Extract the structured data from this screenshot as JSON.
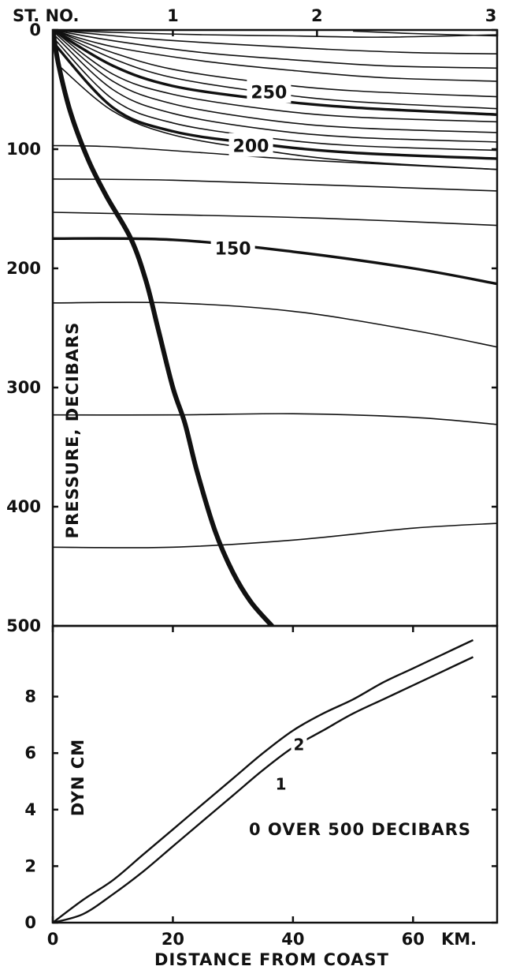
{
  "chart_data": [
    {
      "type": "line",
      "panel": "vertical section",
      "x_label": "",
      "y_label": "PRESSURE, DECIBARS",
      "xlim": [
        0,
        74
      ],
      "ylim": [
        500,
        0
      ],
      "y_ticks": [
        "0",
        "100",
        "200",
        "300",
        "400",
        "500"
      ],
      "station_header": "ST. NO.",
      "stations": [
        {
          "label": "1",
          "x": 20
        },
        {
          "label": "2",
          "x": 44
        },
        {
          "label": "3",
          "x": 74
        }
      ],
      "contour_labels": [
        "250",
        "200",
        "150"
      ],
      "bottom_profile": [
        [
          0,
          0
        ],
        [
          1,
          30
        ],
        [
          3,
          70
        ],
        [
          6,
          110
        ],
        [
          9,
          140
        ],
        [
          13,
          175
        ],
        [
          15.5,
          210
        ],
        [
          17.5,
          250
        ],
        [
          20,
          300
        ],
        [
          22,
          330
        ],
        [
          24,
          370
        ],
        [
          27,
          420
        ],
        [
          30,
          455
        ],
        [
          33,
          480
        ],
        [
          36.5,
          500
        ]
      ],
      "isopleths": [
        {
          "major": false,
          "points": [
            [
              0,
              0
            ],
            [
              10,
              2
            ],
            [
              25,
              4
            ],
            [
              40,
              5
            ],
            [
              55,
              6
            ],
            [
              74,
              4
            ]
          ]
        },
        {
          "major": false,
          "points": [
            [
              50,
              1
            ],
            [
              60,
              3
            ],
            [
              74,
              5
            ]
          ]
        },
        {
          "major": false,
          "points": [
            [
              0,
              0
            ],
            [
              15,
              7
            ],
            [
              30,
              12
            ],
            [
              45,
              16
            ],
            [
              60,
              19
            ],
            [
              74,
              20
            ]
          ]
        },
        {
          "major": false,
          "points": [
            [
              0,
              0
            ],
            [
              10,
              9
            ],
            [
              25,
              19
            ],
            [
              40,
              25
            ],
            [
              55,
              30
            ],
            [
              74,
              32
            ]
          ]
        },
        {
          "major": false,
          "points": [
            [
              0,
              0
            ],
            [
              10,
              14
            ],
            [
              25,
              26
            ],
            [
              40,
              34
            ],
            [
              55,
              40
            ],
            [
              74,
              43
            ]
          ]
        },
        {
          "major": false,
          "points": [
            [
              0,
              0
            ],
            [
              10,
              19
            ],
            [
              20,
              33
            ],
            [
              35,
              44
            ],
            [
              50,
              51
            ],
            [
              74,
              56
            ]
          ]
        },
        {
          "major": false,
          "points": [
            [
              0,
              0
            ],
            [
              10,
              24
            ],
            [
              20,
              40
            ],
            [
              35,
              52
            ],
            [
              50,
              60
            ],
            [
              74,
              66
            ]
          ]
        },
        {
          "major": true,
          "label": "250",
          "points": [
            [
              0,
              0
            ],
            [
              10,
              30
            ],
            [
              20,
              47
            ],
            [
              35,
              58
            ],
            [
              50,
              65
            ],
            [
              74,
              71
            ]
          ]
        },
        {
          "major": false,
          "points": [
            [
              0,
              0
            ],
            [
              10,
              37
            ],
            [
              20,
              54
            ],
            [
              35,
              66
            ],
            [
              50,
              73
            ],
            [
              74,
              77
            ]
          ]
        },
        {
          "major": false,
          "points": [
            [
              0,
              1
            ],
            [
              10,
              43
            ],
            [
              20,
              62
            ],
            [
              35,
              75
            ],
            [
              50,
              82
            ],
            [
              74,
              86
            ]
          ]
        },
        {
          "major": false,
          "points": [
            [
              0,
              3
            ],
            [
              10,
              50
            ],
            [
              20,
              70
            ],
            [
              35,
              83
            ],
            [
              50,
              90
            ],
            [
              74,
              94
            ]
          ]
        },
        {
          "major": false,
          "points": [
            [
              0,
              6
            ],
            [
              10,
              58
            ],
            [
              20,
              78
            ],
            [
              35,
              90
            ],
            [
              50,
              97
            ],
            [
              74,
              101
            ]
          ]
        },
        {
          "major": true,
          "label": "200",
          "points": [
            [
              0,
              10
            ],
            [
              10,
              65
            ],
            [
              20,
              85
            ],
            [
              35,
              96
            ],
            [
              50,
              103
            ],
            [
              74,
              108
            ]
          ]
        },
        {
          "major": false,
          "points": [
            [
              1,
              30
            ],
            [
              10,
              68
            ],
            [
              20,
              88
            ],
            [
              35,
              101
            ],
            [
              50,
              110
            ],
            [
              74,
              117
            ]
          ]
        },
        {
          "major": false,
          "points": [
            [
              0,
              97
            ],
            [
              10,
              98
            ],
            [
              25,
              103
            ],
            [
              45,
              110
            ],
            [
              74,
              117
            ]
          ]
        },
        {
          "major": false,
          "points": [
            [
              0,
              125
            ],
            [
              20,
              126
            ],
            [
              45,
              130
            ],
            [
              74,
              135
            ]
          ]
        },
        {
          "major": false,
          "points": [
            [
              0,
              153
            ],
            [
              20,
              155
            ],
            [
              45,
              158
            ],
            [
              74,
              164
            ]
          ]
        },
        {
          "major": true,
          "label": "150",
          "points": [
            [
              0,
              175
            ],
            [
              20,
              176
            ],
            [
              40,
              186
            ],
            [
              60,
              200
            ],
            [
              74,
              213
            ]
          ]
        },
        {
          "major": false,
          "points": [
            [
              0,
              229
            ],
            [
              20,
              229
            ],
            [
              40,
              236
            ],
            [
              60,
              252
            ],
            [
              74,
              266
            ]
          ]
        },
        {
          "major": false,
          "points": [
            [
              0,
              323
            ],
            [
              20,
              323
            ],
            [
              40,
              322
            ],
            [
              60,
              325
            ],
            [
              74,
              331
            ]
          ]
        },
        {
          "major": false,
          "points": [
            [
              0,
              434
            ],
            [
              20,
              434
            ],
            [
              40,
              428
            ],
            [
              60,
              418
            ],
            [
              74,
              414
            ]
          ]
        }
      ]
    },
    {
      "type": "line",
      "panel": "dynamic height difference",
      "x_label": "DISTANCE FROM COAST",
      "x_unit_label": "KM.",
      "y_label": "DYN CM",
      "annotation": "0 OVER 500 DECIBARS",
      "xlim": [
        0,
        74
      ],
      "ylim": [
        0,
        10
      ],
      "x_ticks": [
        "0",
        "20",
        "40",
        "60"
      ],
      "y_ticks": [
        "0",
        "2",
        "4",
        "6",
        "8"
      ],
      "series": [
        {
          "name": "1",
          "x": [
            0,
            5,
            10,
            15,
            20,
            25,
            30,
            35,
            40,
            45,
            50,
            55,
            60,
            65,
            70
          ],
          "y": [
            0,
            0.3,
            1.0,
            1.8,
            2.7,
            3.6,
            4.5,
            5.4,
            6.2,
            6.8,
            7.4,
            7.9,
            8.4,
            8.9,
            9.4
          ]
        },
        {
          "name": "2",
          "x": [
            0,
            5,
            10,
            15,
            20,
            25,
            30,
            35,
            40,
            45,
            50,
            55,
            60,
            65,
            70
          ],
          "y": [
            0,
            0.8,
            1.5,
            2.4,
            3.3,
            4.2,
            5.1,
            6.0,
            6.8,
            7.4,
            7.9,
            8.5,
            9.0,
            9.5,
            10.0
          ]
        }
      ]
    }
  ]
}
